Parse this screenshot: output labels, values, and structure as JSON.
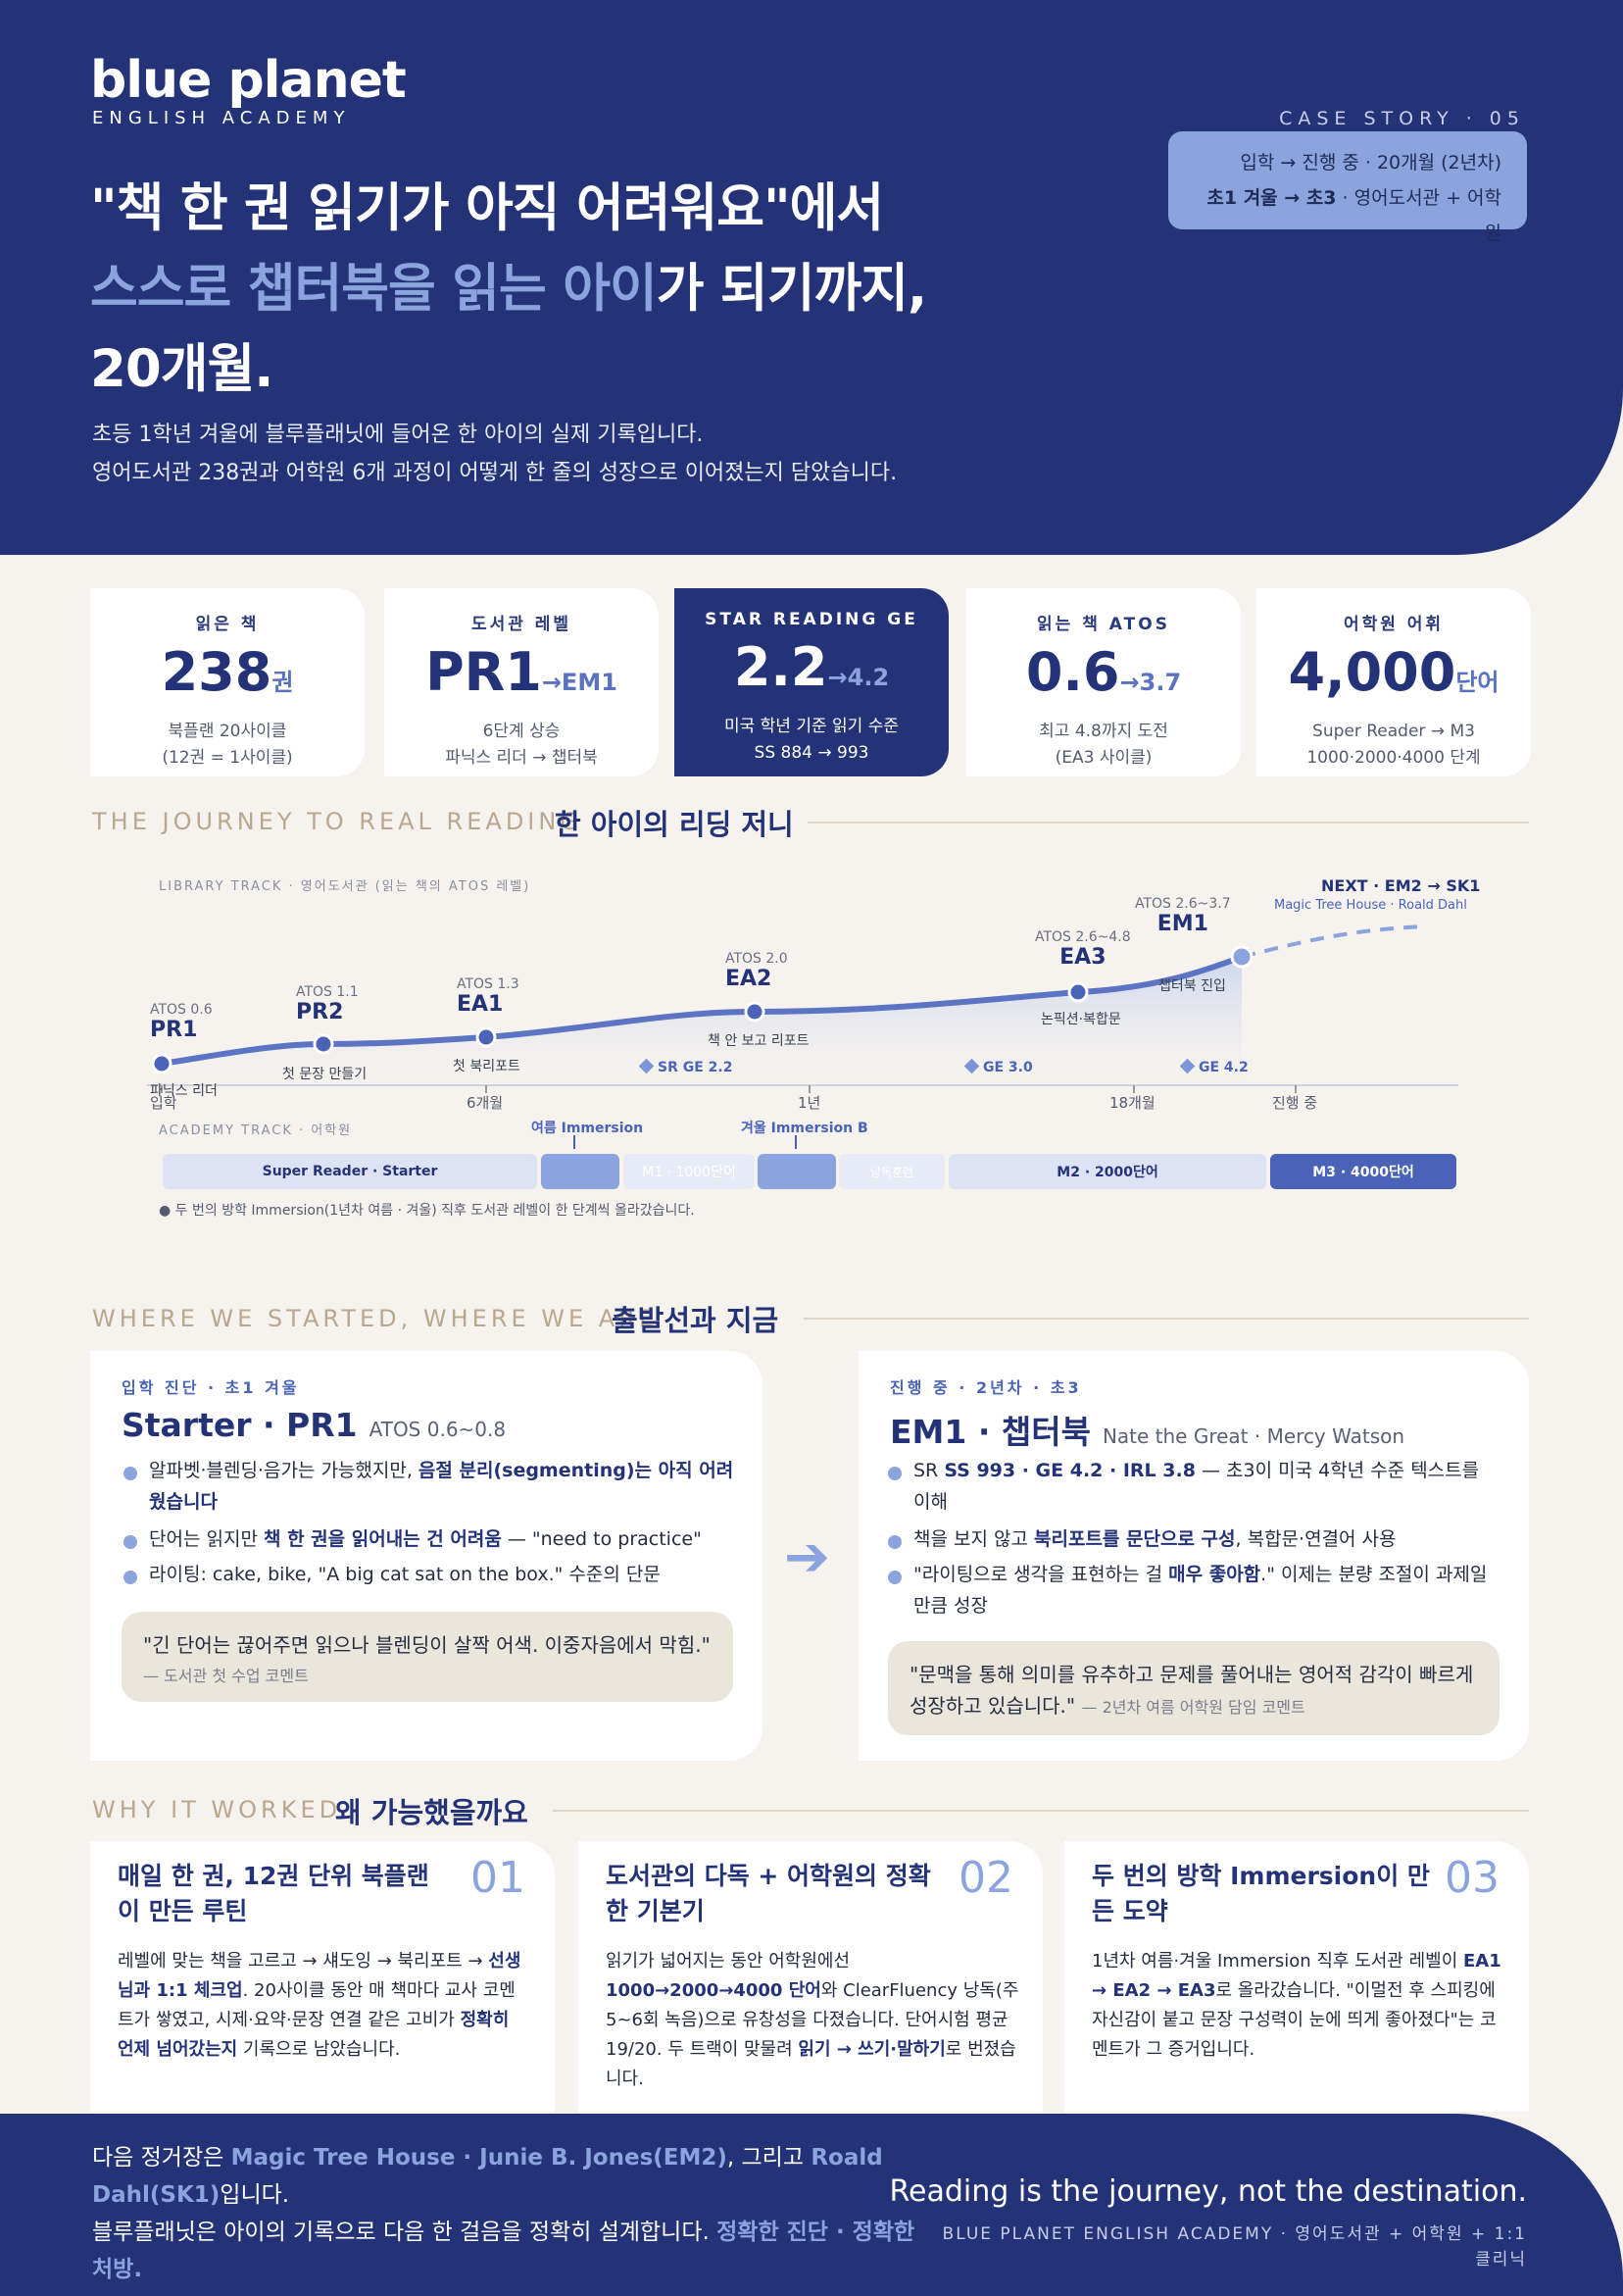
{
  "brand": {
    "name": "blue planet",
    "sub": "ENGLISH ACADEMY"
  },
  "case": {
    "label": "CASE STORY · 05",
    "line1": "입학 → 진행 중 · 20개월 (2년차)",
    "line2_bold": "초1 겨울 → 초3",
    "line2_rest": " · 영어도서관 + 어학원"
  },
  "hero": {
    "line1": "\"책 한 권 읽기가 아직 어려워요\"에서",
    "line2_hl": "스스로 챕터북을 읽는 아이",
    "line2_rest": "가 되기까지,",
    "line3": "20개월.",
    "desc1": "초등 1학년 겨울에 블루플래닛에 들어온 한 아이의 실제 기록입니다.",
    "desc2": "영어도서관 238권과 어학원 6개 과정이 어떻게 한 줄의 성장으로 이어졌는지 담았습니다."
  },
  "stats": [
    {
      "label": "읽은 책",
      "value": "238",
      "unit": "권",
      "sub1": "북플랜 20사이클",
      "sub2": "(12권 = 1사이클)"
    },
    {
      "label": "도서관 레벨",
      "value": "PR1",
      "unit": "→EM1",
      "sub1": "6단계 상승",
      "sub2": "파닉스 리더 → 챕터북"
    },
    {
      "label": "STAR READING GE",
      "value": "2.2",
      "unit": "→4.2",
      "sub1": "미국 학년 기준 읽기 수준",
      "sub2": "SS 884 → 993"
    },
    {
      "label": "읽는 책 ATOS",
      "value": "0.6",
      "unit": "→3.7",
      "sub1": "최고 4.8까지 도전",
      "sub2": "(EA3 사이클)"
    },
    {
      "label": "어학원 어휘",
      "value": "4,000",
      "unit": "단어",
      "sub1": "Super Reader → M3",
      "sub2": "1000·2000·4000 단계"
    }
  ],
  "journey": {
    "en": "THE JOURNEY TO REAL READING",
    "ko": "한 아이의 리딩 저니",
    "library_label": "LIBRARY TRACK · 영어도서관 (읽는 책의 ATOS 레벨)",
    "academy_label": "ACADEMY TRACK · 어학원",
    "milestones": [
      {
        "atos": "ATOS 0.6",
        "code": "PR1"
      },
      {
        "atos": "ATOS 1.1",
        "code": "PR2"
      },
      {
        "atos": "ATOS 1.3",
        "code": "EA1"
      },
      {
        "atos": "ATOS 2.0",
        "code": "EA2"
      },
      {
        "atos": "ATOS 2.6~4.8",
        "code": "EA3"
      },
      {
        "atos": "ATOS 2.6~3.7",
        "code": "EM1"
      }
    ],
    "notes": [
      "파닉스 리더",
      "첫 문장 만들기",
      "첫 북리포트",
      "책 안 보고 리포트",
      "논픽션·복합문",
      "챕터북 진입"
    ],
    "next_title": "NEXT · EM2 → SK1",
    "next_sub": "Magic Tree House · Roald Dahl",
    "ge_marks": [
      "SR GE 2.2",
      "GE 3.0",
      "GE 4.2"
    ],
    "ticks": [
      "입학",
      "6개월",
      "1년",
      "18개월",
      "진행 중"
    ],
    "immersions": [
      "여름 Immersion",
      "겨울 Immersion B"
    ],
    "bars": [
      "Super Reader · Starter",
      "M1 · 1000단어",
      "낭독훈련",
      "M2 · 2000단어",
      "M3 · 4000단어"
    ],
    "footnote": "● 두 번의 방학 Immersion(1년차 여름 · 겨울) 직후 도서관 레벨이 한 단계씩 올라갔습니다."
  },
  "compare": {
    "en": "WHERE WE STARTED, WHERE WE ARE",
    "ko": "출발선과 지금",
    "start": {
      "tag": "입학 진단 · 초1 겨울",
      "title": "Starter · PR1",
      "title_sub": "ATOS 0.6~0.8",
      "b1a": "알파벳·블렌딩·음가는 가능했지만, ",
      "b1b": "음절 분리(segmenting)는 아직 어려웠습니다",
      "b2a": "단어는 읽지만 ",
      "b2b": "책 한 권을 읽어내는 건 어려움",
      "b2c": " — \"need to practice\"",
      "b3": "라이팅: cake, bike, \"A big cat sat on the box.\" 수준의 단문",
      "quote": "\"긴 단어는 끊어주면 읽으나 블렌딩이 살짝 어색. 이중자음에서 막힘.\"",
      "quote_by": "— 도서관 첫 수업 코멘트"
    },
    "now": {
      "tag": "진행 중 · 2년차 · 초3",
      "title": "EM1 · 챕터북",
      "title_sub": "Nate the Great · Mercy Watson",
      "b1a": "SR ",
      "b1b": "SS 993 · GE 4.2 · IRL 3.8",
      "b1c": " — 초3이 미국 4학년 수준 텍스트를 이해",
      "b2a": "책을 보지 않고 ",
      "b2b": "북리포트를 문단으로 구성",
      "b2c": ", 복합문·연결어 사용",
      "b3a": "\"라이팅으로 생각을 표현하는 걸 ",
      "b3b": "매우 좋아함",
      "b3c": ".\" 이제는 분량 조절이 과제일 만큼 성장",
      "quote": "\"문맥을 통해 의미를 유추하고 문제를 풀어내는 영어적 감각이 빠르게 성장하고 있습니다.\"",
      "quote_by": "— 2년차 여름 어학원 담임 코멘트"
    }
  },
  "why": {
    "en": "WHY IT WORKED",
    "ko": "왜 가능했을까요",
    "items": [
      {
        "num": "01",
        "title": "매일 한 권, 12권 단위 북플랜이 만든 루틴"
      },
      {
        "num": "02",
        "title": "도서관의 다독 + 어학원의 정확한 기본기"
      },
      {
        "num": "03",
        "title": "두 번의 방학 Immersion이 만든 도약"
      }
    ],
    "w1": {
      "a": "레벨에 맞는 책을 고르고 → 섀도잉 → 북리포트 → ",
      "b": "선생님과 1:1 체크업",
      "c": ". 20사이클 동안 매 책마다 교사 코멘트가 쌓였고, 시제·요약·문장 연결 같은 고비가 ",
      "d": "정확히 언제 넘어갔는지",
      "e": " 기록으로 남았습니다."
    },
    "w2": {
      "a": "읽기가 넓어지는 동안 어학원에선 ",
      "b": "1000→2000→4000 단어",
      "c": "와 ClearFluency 낭독(주 5~6회 녹음)으로 유창성을 다졌습니다. 단어시험 평균 19/20. 두 트랙이 맞물려 ",
      "d": "읽기 → 쓰기·말하기",
      "e": "로 번졌습니다."
    },
    "w3": {
      "a": "1년차 여름·겨울 Immersion 직후 도서관 레벨이 ",
      "b": "EA1 → EA2 → EA3",
      "c": "로 올라갔습니다. \"이멀전 후 스피킹에 자신감이 붙고 문장 구성력이 눈에 띄게 좋아졌다\"는 코멘트가 그 증거입니다."
    }
  },
  "footer": {
    "t1": "다음 정거장은 ",
    "t2": "Magic Tree House · Junie B. Jones(EM2)",
    "t3": ", 그리고 ",
    "t4": "Roald Dahl(SK1)",
    "t5": "입니다.",
    "t6": "블루플래닛은 아이의 기록으로 다음 한 걸음을 정확히 설계합니다. ",
    "t7": "정확한 진단 · 정확한 처방.",
    "quote": "Reading is the journey, not the destination.",
    "sub": "BLUE PLANET ENGLISH ACADEMY · 영어도서관 + 어학원 + 1:1 클리닉"
  },
  "colors": {
    "navy": "#243378",
    "accent": "#8ca4dd",
    "cream": "#f6f3ee"
  }
}
